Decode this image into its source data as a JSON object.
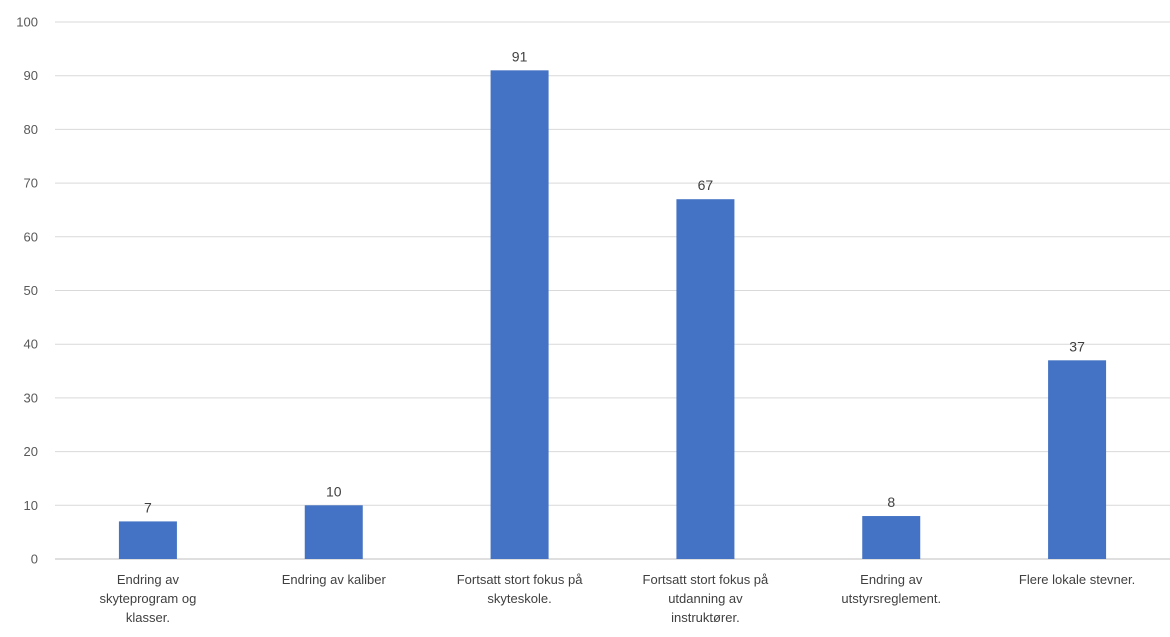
{
  "chart_data": {
    "type": "bar",
    "title": "",
    "xlabel": "",
    "ylabel": "",
    "categories": [
      [
        "Endring av",
        "skyteprogram og",
        "klasser."
      ],
      [
        "Endring av kaliber"
      ],
      [
        "Fortsatt stort fokus på",
        "skyteskole."
      ],
      [
        "Fortsatt stort fokus på",
        "utdanning av",
        "instruktører."
      ],
      [
        "Endring av",
        "utstyrsreglement."
      ],
      [
        "Flere lokale stevner."
      ]
    ],
    "values": [
      7,
      10,
      91,
      67,
      8,
      37
    ],
    "ylim": [
      0,
      100
    ],
    "yticks": [
      0,
      10,
      20,
      30,
      40,
      50,
      60,
      70,
      80,
      90,
      100
    ],
    "grid": true,
    "legend": "none",
    "bar_color": "#4472c4"
  }
}
